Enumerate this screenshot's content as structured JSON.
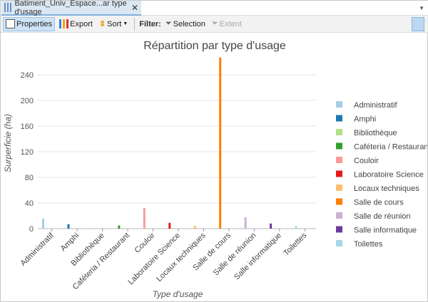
{
  "tab": {
    "title": "Batiment_Univ_Espace...ar type d'usage",
    "close": "✕"
  },
  "toolbar": {
    "properties": "Properties",
    "export": "Export",
    "sort": "Sort",
    "filter": "Filter:",
    "selection": "Selection",
    "extent": "Extent"
  },
  "chart_data": {
    "type": "bar",
    "title": "Répartition par type d'usage",
    "xlabel": "Type d'usage",
    "ylabel": "Surperficie (ha)",
    "ylim": [
      0,
      280
    ],
    "yticks": [
      0,
      40,
      80,
      120,
      160,
      200,
      240
    ],
    "grid": true,
    "legend_position": "right",
    "categories": [
      "Administratif",
      "Amphi",
      "Bibliothèque",
      "Caféteria / Restaurant",
      "Couloir",
      "Laboratoire Science",
      "Locaux techniques",
      "Salle de cours",
      "Salle de réunion",
      "Salle informatique",
      "Toilettes"
    ],
    "values": [
      15.5,
      7,
      1,
      5,
      32,
      9,
      4.5,
      267,
      18,
      8,
      4
    ],
    "colors": [
      "#a6cee3",
      "#1f78b4",
      "#b2df8a",
      "#33a02c",
      "#fb9a99",
      "#e31a1c",
      "#fdbf6f",
      "#ff7f00",
      "#cab2d6",
      "#6a3d9a",
      "#a6d8e8"
    ]
  }
}
